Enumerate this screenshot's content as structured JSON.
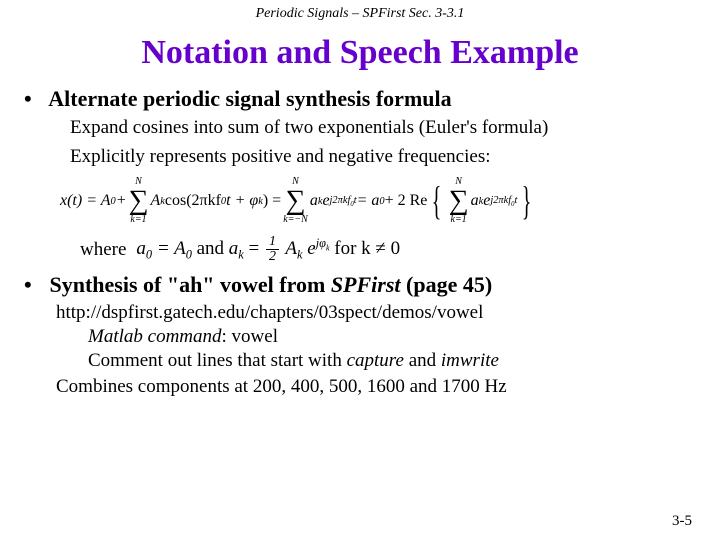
{
  "header": "Periodic Signals – SPFirst Sec. 3-3.1",
  "title": "Notation and Speech Example",
  "bullet1": "Alternate periodic signal synthesis formula",
  "sub1a": "Expand cosines into sum of two exponentials (Euler's formula)",
  "sub1b": "Explicitly represents positive and negative frequencies:",
  "formula": {
    "lhs": "x(t) = A",
    "lhs_sub": "0",
    "plus": " + ",
    "sum1_top": "N",
    "sum1_bot": "k=1",
    "term1_a": "A",
    "term1_a_sub": "k",
    "term1_cos": " cos(2πkf",
    "term1_f_sub": "0",
    "term1_rest": "t + φ",
    "term1_phi_sub": "k",
    "term1_close": ") = ",
    "sum2_top": "N",
    "sum2_bot": "k=−N",
    "term2_a": "a",
    "term2_a_sub": "k",
    "term2_e": "e",
    "term2_exp": " j2πkf",
    "term2_exp_sub": "0",
    "term2_exp_t": "t",
    "eq2": " = a",
    "eq2_sub": "0",
    "plus2": " + 2 Re",
    "sum3_top": "N",
    "sum3_bot": "k=1",
    "term3_a": "a",
    "term3_a_sub": "k",
    "term3_e": "e",
    "term3_exp": " j2πkf",
    "term3_exp_sub": "0",
    "term3_exp_t": "t"
  },
  "where_label": "where",
  "where_a0": "a",
  "where_a0_sub": "0",
  "where_eqA0": " = A",
  "where_A0_sub": "0",
  "where_and": " and ",
  "where_ak": "a",
  "where_ak_sub": "k",
  "where_eq": " = ",
  "where_frac_num": "1",
  "where_frac_den": "2",
  "where_Ak": "A",
  "where_Ak_sub": "k",
  "where_e": "e",
  "where_exp_j": "jφ",
  "where_exp_sub": "k",
  "where_for": " for k ≠ 0",
  "bullet2_a": "Synthesis of \"ah\" vowel from ",
  "bullet2_b": "SPFirst",
  "bullet2_c": " (page 45)",
  "url": "http://dspfirst.gatech.edu/chapters/03spect/demos/vowel",
  "sub2a_i": "Matlab command",
  "sub2a_r": ": vowel",
  "sub2b_a": "Comment out lines that start with ",
  "sub2b_i1": "capture",
  "sub2b_m": " and ",
  "sub2b_i2": "imwrite",
  "sub2c": "Combines components at 200, 400, 500, 1600 and 1700 Hz",
  "footer": "3-5",
  "colors": {
    "title": "#6600cc",
    "text": "#000000",
    "bg": "#ffffff"
  }
}
